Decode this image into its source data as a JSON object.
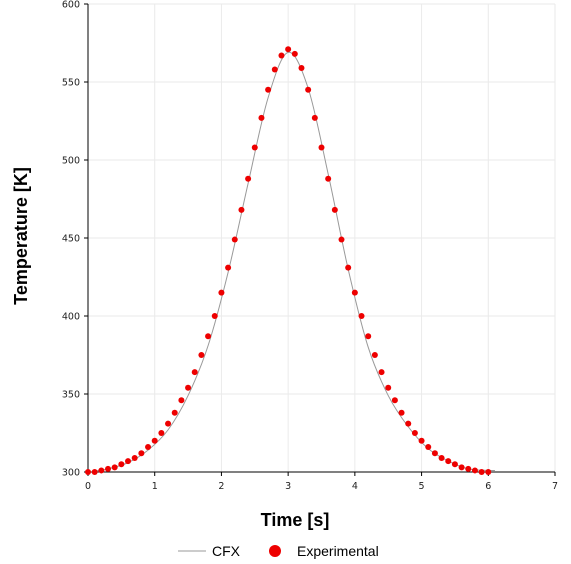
{
  "chart_data": {
    "type": "scatter",
    "title": "",
    "xlabel": "Time [s]",
    "ylabel": "Temperature [K]",
    "xlim": [
      0,
      7
    ],
    "ylim": [
      300,
      600
    ],
    "xticks": [
      "0",
      "1",
      "2",
      "3",
      "4",
      "5",
      "6",
      "7"
    ],
    "yticks": [
      "300",
      "350",
      "400",
      "450",
      "500",
      "550",
      "600"
    ],
    "grid": true,
    "legend_position": "bottom",
    "series": [
      {
        "name": "CFX",
        "kind": "line",
        "color": "#999999",
        "x": [
          0,
          0.3,
          0.6,
          0.9,
          1.2,
          1.5,
          1.8,
          2.1,
          2.4,
          2.7,
          3.0,
          3.3,
          3.6,
          3.9,
          4.2,
          4.5,
          4.8,
          5.1,
          5.4,
          5.7,
          6.0,
          6.1
        ],
        "y": [
          300,
          302,
          306,
          314,
          327,
          349,
          381,
          428,
          485,
          540,
          569,
          546,
          491,
          430,
          380,
          349,
          329,
          315,
          307,
          302,
          301,
          301
        ]
      },
      {
        "name": "Experimental",
        "kind": "markers",
        "color": "#ee0000",
        "x": [
          0,
          0.1,
          0.2,
          0.3,
          0.4,
          0.5,
          0.6,
          0.7,
          0.8,
          0.9,
          1.0,
          1.1,
          1.2,
          1.3,
          1.4,
          1.5,
          1.6,
          1.7,
          1.8,
          1.9,
          2.0,
          2.1,
          2.2,
          2.3,
          2.4,
          2.5,
          2.6,
          2.7,
          2.8,
          2.9,
          3.0,
          3.1,
          3.2,
          3.3,
          3.4,
          3.5,
          3.6,
          3.7,
          3.8,
          3.9,
          4.0,
          4.1,
          4.2,
          4.3,
          4.4,
          4.5,
          4.6,
          4.7,
          4.8,
          4.9,
          5.0,
          5.1,
          5.2,
          5.3,
          5.4,
          5.5,
          5.6,
          5.7,
          5.8,
          5.9,
          6.0
        ],
        "y": [
          300,
          300,
          301,
          302,
          303,
          305,
          307,
          309,
          312,
          316,
          320,
          325,
          331,
          338,
          346,
          354,
          364,
          375,
          387,
          400,
          415,
          431,
          449,
          468,
          488,
          508,
          527,
          545,
          558,
          567,
          571,
          568,
          559,
          545,
          527,
          508,
          488,
          468,
          449,
          431,
          415,
          400,
          387,
          375,
          364,
          354,
          346,
          338,
          331,
          325,
          320,
          316,
          312,
          309,
          307,
          305,
          303,
          302,
          301,
          300,
          300
        ]
      }
    ]
  }
}
